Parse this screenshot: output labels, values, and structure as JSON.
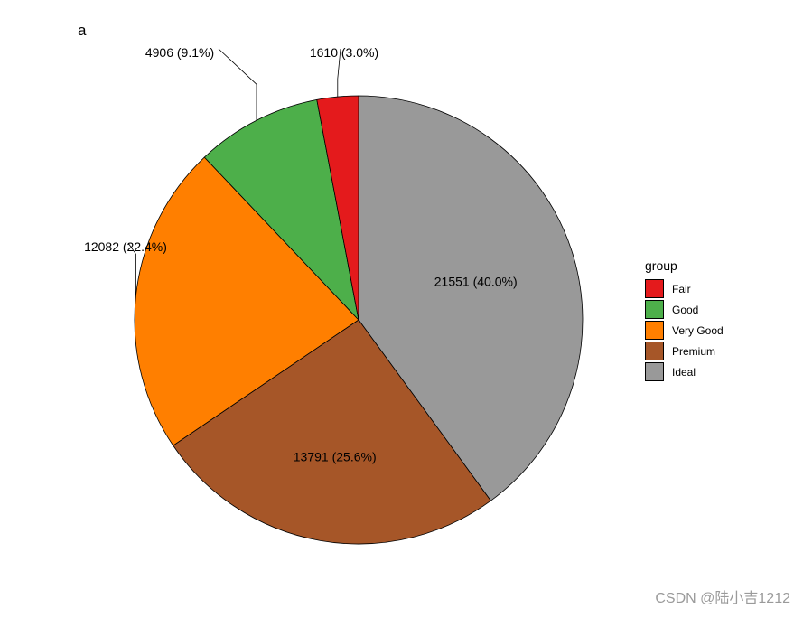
{
  "panel_tag": "a",
  "watermark": "CSDN @陆小吉1212",
  "chart_data": {
    "type": "pie",
    "start": "12 o'clock",
    "direction": "clockwise",
    "order_drawn": [
      "Ideal",
      "Premium",
      "Very Good",
      "Good",
      "Fair"
    ],
    "slices": [
      {
        "category": "Fair",
        "value": 1610,
        "percent": 3.0,
        "label": "1610 (3.0%)",
        "color": "#E41A1C",
        "label_position": "outside"
      },
      {
        "category": "Good",
        "value": 4906,
        "percent": 9.1,
        "label": "4906 (9.1%)",
        "color": "#4DAF4A",
        "label_position": "outside"
      },
      {
        "category": "Very Good",
        "value": 12082,
        "percent": 22.4,
        "label": "12082 (22.4%)",
        "color": "#FF7F00",
        "label_position": "outside"
      },
      {
        "category": "Premium",
        "value": 13791,
        "percent": 25.6,
        "label": "13791 (25.6%)",
        "color": "#A65628",
        "label_position": "inside"
      },
      {
        "category": "Ideal",
        "value": 21551,
        "percent": 40.0,
        "label": "21551 (40.0%)",
        "color": "#999999",
        "label_position": "inside"
      }
    ],
    "legend": {
      "title": "group",
      "placement": "right",
      "items": [
        "Fair",
        "Good",
        "Very Good",
        "Premium",
        "Ideal"
      ]
    }
  }
}
